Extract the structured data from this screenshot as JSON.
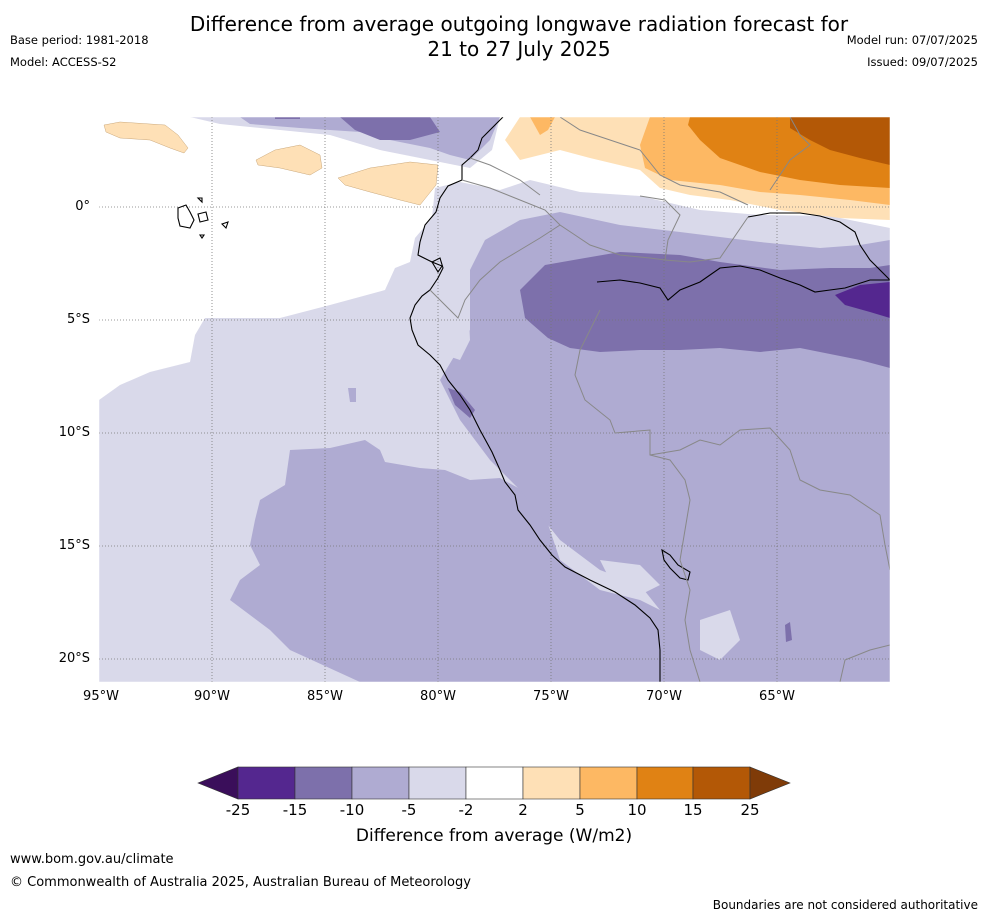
{
  "header": {
    "title_line1": "Difference from average outgoing longwave radiation forecast for",
    "title_line2": "21 to 27 July 2025",
    "base_period": "Base period: 1981-2018",
    "model": "Model: ACCESS-S2",
    "model_run": "Model run: 07/07/2025",
    "issued": "Issued: 09/07/2025"
  },
  "map": {
    "lat_labels": [
      "0°",
      "5°S",
      "10°S",
      "15°S",
      "20°S"
    ],
    "lon_labels": [
      "95°W",
      "90°W",
      "85°W",
      "80°W",
      "75°W",
      "70°W",
      "65°W"
    ],
    "extent": {
      "lon_min": -95,
      "lon_max": -60,
      "lat_min": -21,
      "lat_max": 4
    },
    "colors": {
      "below_-25": "#3a0e5a",
      "-25_-15": "#54278f",
      "-15_-10": "#7d70ab",
      "-10_-5": "#afabd2",
      "-5_-2": "#d9d9ea",
      "-2_2": "#ffffff",
      "2_5": "#fee0b6",
      "5_10": "#fdb863",
      "10_15": "#e08214",
      "15_25": "#b35806",
      "above_25": "#7f3b08"
    }
  },
  "colorbar": {
    "ticks": [
      "-25",
      "-15",
      "-10",
      "-5",
      "-2",
      "2",
      "5",
      "10",
      "15",
      "25"
    ],
    "label": "Difference from average (W/m2)"
  },
  "footer": {
    "url": "www.bom.gov.au/climate",
    "copyright": "© Commonwealth of Australia 2025, Australian Bureau of Meteorology",
    "disclaimer": "Boundaries are not considered authoritative"
  }
}
